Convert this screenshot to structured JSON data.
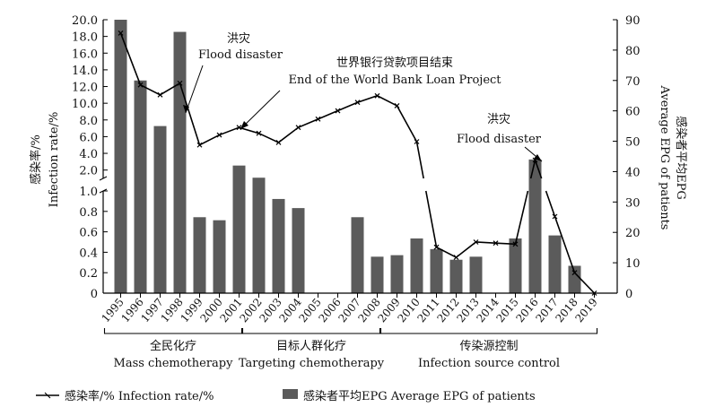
{
  "chart_data": {
    "type": "bar",
    "categories": [
      "1995",
      "1996",
      "1997",
      "1998",
      "1999",
      "2000",
      "2001",
      "2002",
      "2003",
      "2004",
      "2005",
      "2006",
      "2007",
      "2008",
      "2009",
      "2010",
      "2011",
      "2012",
      "2013",
      "2014",
      "2015",
      "2016",
      "2017",
      "2018",
      "2019"
    ],
    "series": [
      {
        "name": "感染者平均EPG Average EPG of patients",
        "type": "bar",
        "axis": "right",
        "values": [
          90,
          70,
          55,
          86,
          25,
          24,
          42,
          38,
          31,
          28,
          0,
          0,
          25,
          12,
          12.5,
          18,
          14.5,
          11,
          12,
          0,
          18,
          44,
          19,
          9,
          0
        ]
      },
      {
        "name": "感染率/% Infection rate/%",
        "type": "line",
        "axis": "left",
        "values": [
          18.4,
          12.2,
          11.0,
          12.4,
          5.0,
          6.2,
          7.1,
          6.4,
          5.3,
          7.1,
          8.1,
          9.1,
          10.1,
          10.9,
          9.7,
          5.4,
          0.45,
          0.35,
          0.5,
          0.49,
          0.48,
          3.2,
          0.75,
          0.2,
          0.0
        ]
      }
    ],
    "y_left_label": "感染率/%\nInfection rate/%",
    "y_left_ticks_upper": [
      "2.0",
      "4.0",
      "6.0",
      "8.0",
      "10.0",
      "12.0",
      "14.0",
      "16.0",
      "18.0",
      "20.0"
    ],
    "y_left_ticks_lower": [
      "0",
      "0.2",
      "0.4",
      "0.6",
      "0.8",
      "1.0"
    ],
    "y_left_break": true,
    "y_right_label": "感染者平均EPG\nAverage EPG of patients",
    "y_right_ticks": [
      "0",
      "10",
      "20",
      "30",
      "40",
      "50",
      "60",
      "70",
      "80",
      "90"
    ],
    "ylim_right": [
      0,
      90
    ],
    "annotations": [
      {
        "zh": "洪灾",
        "en": "Flood disaster",
        "target": "1998"
      },
      {
        "zh": "世界银行贷款项目结束",
        "en": "End of the World Bank Loan Project",
        "target": "2001"
      },
      {
        "zh": "洪灾",
        "en": "Flood disaster",
        "target": "2016"
      }
    ],
    "phases": [
      {
        "zh": "全民化疗",
        "en": "Mass chemotherapy",
        "start": "1995",
        "end": "2001"
      },
      {
        "zh": "目标人群化疗",
        "en": "Targeting chemotherapy",
        "start": "2002",
        "end": "2008"
      },
      {
        "zh": "传染源控制",
        "en": "Infection source control",
        "start": "2009",
        "end": "2019"
      }
    ],
    "legend": [
      {
        "text": "感染率/%  Infection rate/%",
        "kind": "line"
      },
      {
        "text": "感染者平均EPG  Average EPG of patients",
        "kind": "bar"
      }
    ],
    "legend_position": "bottom",
    "colors": {
      "bar": "#5b5b5b",
      "line": "#000000"
    }
  }
}
